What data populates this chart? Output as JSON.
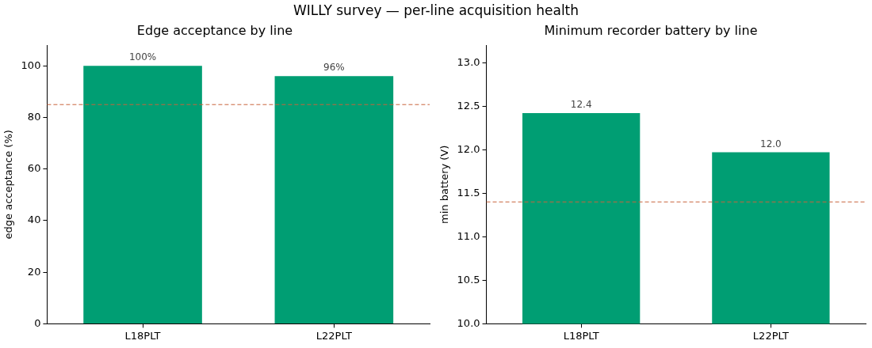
{
  "chart_data": [
    {
      "type": "bar",
      "title": "Edge acceptance by line",
      "ylabel": "edge acceptance (%)",
      "annotations": [
        "WILLY survey — per-line acquisition health"
      ],
      "categories": [
        "L18PLT",
        "L22PLT"
      ],
      "values": [
        100,
        96
      ],
      "value_labels": [
        "100%",
        "96%"
      ],
      "color": "#009e73",
      "ylim": [
        0,
        108
      ],
      "yticks": [
        0,
        20,
        40,
        60,
        80,
        100
      ],
      "grid": false,
      "legend": false,
      "ref_lines": [
        {
          "axis": "y",
          "value": 85,
          "color": "#c8643c",
          "line_style": "dashed"
        }
      ]
    },
    {
      "type": "bar",
      "title": "Minimum recorder battery by line",
      "ylabel": "min battery (V)",
      "categories": [
        "L18PLT",
        "L22PLT"
      ],
      "values": [
        12.42,
        11.97
      ],
      "value_labels": [
        "12.4",
        "12.0"
      ],
      "color": "#009e73",
      "ylim": [
        10,
        13.2
      ],
      "yticks": [
        {
          "value": 10,
          "label": "10.0"
        },
        {
          "value": 10.5,
          "label": "10.5"
        },
        {
          "value": 11,
          "label": "11.0"
        },
        {
          "value": 11.5,
          "label": "11.5"
        },
        {
          "value": 12,
          "label": "12.0"
        },
        {
          "value": 12.5,
          "label": "12.5"
        },
        {
          "value": 13,
          "label": "13.0"
        }
      ],
      "grid": false,
      "legend": false,
      "ref_lines": [
        {
          "axis": "y",
          "value": 11.4,
          "color": "#c8643c",
          "line_style": "dashed"
        }
      ]
    }
  ]
}
